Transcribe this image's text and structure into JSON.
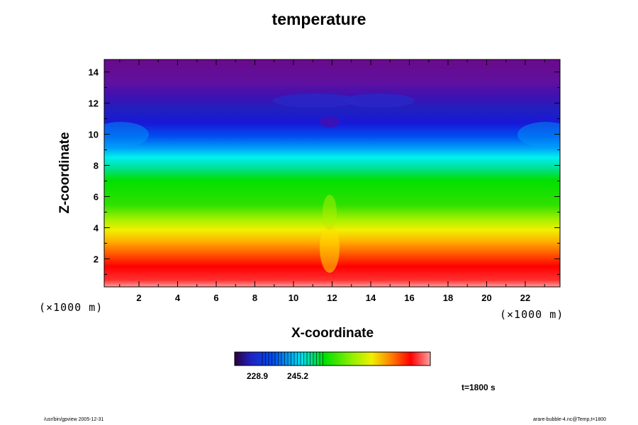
{
  "chart_data": {
    "type": "heatmap",
    "title": "temperature",
    "xlabel": "X-coordinate",
    "ylabel": "Z-coordinate",
    "x_unit": "(×1000 m)",
    "z_unit": "(×1000 m)",
    "xlim": [
      0.2,
      23.8
    ],
    "ylim": [
      0.2,
      14.8
    ],
    "x_ticks": [
      2,
      4,
      6,
      8,
      10,
      12,
      14,
      16,
      18,
      20,
      22
    ],
    "y_ticks": [
      2,
      4,
      6,
      8,
      10,
      12,
      14
    ],
    "colorbar": {
      "tick_labels": [
        "228.9",
        "245.2"
      ],
      "range": [
        212,
        300
      ]
    },
    "colorscale": [
      "#6a0a8a",
      "#1818d8",
      "#00d8f0",
      "#00e000",
      "#f0f000",
      "#ff8000",
      "#ff0000",
      "#ffa0a0"
    ],
    "time_label": "t=1800 s"
  },
  "footer": {
    "left": "/usr/bin/gpview 2005-12-31",
    "right": "arare-bubble-4.nc@Temp,t=1800"
  }
}
